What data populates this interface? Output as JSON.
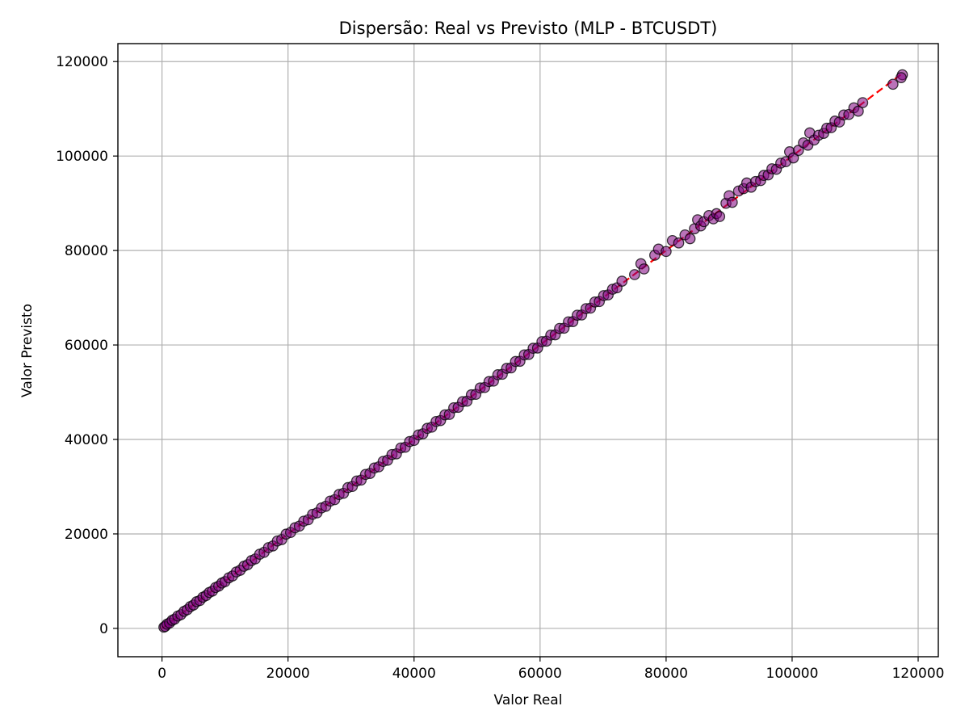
{
  "chart_data": {
    "type": "scatter",
    "title": "Dispersão: Real vs Previsto (MLP - BTCUSDT)",
    "xlabel": "Valor Real",
    "ylabel": "Valor Previsto",
    "xlim": [
      -7000,
      123200
    ],
    "ylim": [
      -6000,
      123800
    ],
    "xticks": [
      0,
      20000,
      40000,
      60000,
      80000,
      100000,
      120000
    ],
    "yticks": [
      0,
      20000,
      40000,
      60000,
      80000,
      100000,
      120000
    ],
    "grid": true,
    "colors": {
      "points": "#800080",
      "edge": "#000000",
      "reference_line": "#ff0000"
    },
    "reference_line": {
      "style": "dashed",
      "from": [
        0,
        0
      ],
      "to": [
        117500,
        117500
      ]
    },
    "series": [
      {
        "points": [
          [
            300,
            250
          ],
          [
            500,
            420
          ],
          [
            800,
            880
          ],
          [
            1200,
            1150
          ],
          [
            1600,
            1700
          ],
          [
            2000,
            1950
          ],
          [
            2500,
            2600
          ],
          [
            3000,
            2900
          ],
          [
            3500,
            3600
          ],
          [
            4000,
            3950
          ],
          [
            4500,
            4600
          ],
          [
            5000,
            4950
          ],
          [
            5500,
            5650
          ],
          [
            6000,
            5900
          ],
          [
            6500,
            6600
          ],
          [
            7000,
            6950
          ],
          [
            7500,
            7600
          ],
          [
            8000,
            7900
          ],
          [
            8500,
            8650
          ],
          [
            9000,
            8950
          ],
          [
            9500,
            9600
          ],
          [
            10000,
            9900
          ],
          [
            10600,
            10700
          ],
          [
            11200,
            11100
          ],
          [
            11800,
            11950
          ],
          [
            12400,
            12300
          ],
          [
            13000,
            13150
          ],
          [
            13600,
            13500
          ],
          [
            14200,
            14350
          ],
          [
            14800,
            14700
          ],
          [
            15500,
            15700
          ],
          [
            16200,
            16100
          ],
          [
            16900,
            17100
          ],
          [
            17600,
            17450
          ],
          [
            18300,
            18500
          ],
          [
            19000,
            18800
          ],
          [
            19700,
            19950
          ],
          [
            20400,
            20300
          ],
          [
            21100,
            21300
          ],
          [
            21800,
            21650
          ],
          [
            22500,
            22700
          ],
          [
            23200,
            23000
          ],
          [
            23900,
            24150
          ],
          [
            24600,
            24450
          ],
          [
            25300,
            25500
          ],
          [
            26000,
            25850
          ],
          [
            26700,
            26950
          ],
          [
            27400,
            27250
          ],
          [
            28100,
            28350
          ],
          [
            28800,
            28600
          ],
          [
            29500,
            29800
          ],
          [
            30200,
            30050
          ],
          [
            30900,
            31200
          ],
          [
            31600,
            31400
          ],
          [
            32300,
            32600
          ],
          [
            33000,
            32800
          ],
          [
            33700,
            33950
          ],
          [
            34400,
            34200
          ],
          [
            35100,
            35350
          ],
          [
            35800,
            35600
          ],
          [
            36500,
            36800
          ],
          [
            37200,
            36950
          ],
          [
            37900,
            38200
          ],
          [
            38600,
            38350
          ],
          [
            39300,
            39550
          ],
          [
            40000,
            39800
          ],
          [
            40700,
            40950
          ],
          [
            41400,
            41200
          ],
          [
            42100,
            42350
          ],
          [
            42800,
            42600
          ],
          [
            43500,
            43800
          ],
          [
            44200,
            44000
          ],
          [
            44900,
            45200
          ],
          [
            45600,
            45300
          ],
          [
            46300,
            46700
          ],
          [
            47000,
            46800
          ],
          [
            47700,
            48000
          ],
          [
            48400,
            48100
          ],
          [
            49100,
            49450
          ],
          [
            49800,
            49550
          ],
          [
            50500,
            50900
          ],
          [
            51200,
            51000
          ],
          [
            51900,
            52250
          ],
          [
            52600,
            52350
          ],
          [
            53300,
            53700
          ],
          [
            54000,
            53800
          ],
          [
            54700,
            55050
          ],
          [
            55400,
            55150
          ],
          [
            56100,
            56500
          ],
          [
            56800,
            56550
          ],
          [
            57500,
            57900
          ],
          [
            58200,
            58000
          ],
          [
            58900,
            59300
          ],
          [
            59600,
            59350
          ],
          [
            60300,
            60700
          ],
          [
            61000,
            60800
          ],
          [
            61700,
            62100
          ],
          [
            62400,
            62150
          ],
          [
            63100,
            63500
          ],
          [
            63800,
            63550
          ],
          [
            64500,
            64900
          ],
          [
            65200,
            64950
          ],
          [
            65900,
            66300
          ],
          [
            66600,
            66350
          ],
          [
            67300,
            67700
          ],
          [
            68000,
            67800
          ],
          [
            68700,
            69100
          ],
          [
            69400,
            69200
          ],
          [
            70100,
            70450
          ],
          [
            70800,
            70600
          ],
          [
            71500,
            71800
          ],
          [
            72200,
            72100
          ],
          [
            73000,
            73500
          ],
          [
            75000,
            74900
          ],
          [
            76000,
            77200
          ],
          [
            76500,
            76100
          ],
          [
            78200,
            79000
          ],
          [
            78800,
            80300
          ],
          [
            80000,
            79800
          ],
          [
            81000,
            82100
          ],
          [
            82000,
            81600
          ],
          [
            83000,
            83300
          ],
          [
            83800,
            82500
          ],
          [
            84500,
            84600
          ],
          [
            85000,
            86500
          ],
          [
            85500,
            85200
          ],
          [
            86000,
            86100
          ],
          [
            86800,
            87400
          ],
          [
            87500,
            86700
          ],
          [
            88000,
            87800
          ],
          [
            88500,
            87200
          ],
          [
            89500,
            90000
          ],
          [
            90000,
            91600
          ],
          [
            90500,
            90200
          ],
          [
            91500,
            92600
          ],
          [
            92300,
            93100
          ],
          [
            92800,
            94300
          ],
          [
            93500,
            93400
          ],
          [
            94200,
            94600
          ],
          [
            95000,
            94800
          ],
          [
            95500,
            95900
          ],
          [
            96200,
            96000
          ],
          [
            96800,
            97300
          ],
          [
            97500,
            97200
          ],
          [
            98200,
            98500
          ],
          [
            99000,
            98800
          ],
          [
            99600,
            100900
          ],
          [
            100200,
            99600
          ],
          [
            101000,
            101200
          ],
          [
            101800,
            102800
          ],
          [
            102500,
            102300
          ],
          [
            102800,
            104900
          ],
          [
            103500,
            103400
          ],
          [
            104200,
            104400
          ],
          [
            105000,
            104800
          ],
          [
            105500,
            105900
          ],
          [
            106200,
            106000
          ],
          [
            106800,
            107400
          ],
          [
            107500,
            107200
          ],
          [
            108200,
            108700
          ],
          [
            109000,
            108800
          ],
          [
            109800,
            110200
          ],
          [
            110500,
            109500
          ],
          [
            111200,
            111300
          ],
          [
            116000,
            115200
          ],
          [
            117500,
            117200
          ],
          [
            117300,
            116600
          ]
        ]
      }
    ]
  }
}
